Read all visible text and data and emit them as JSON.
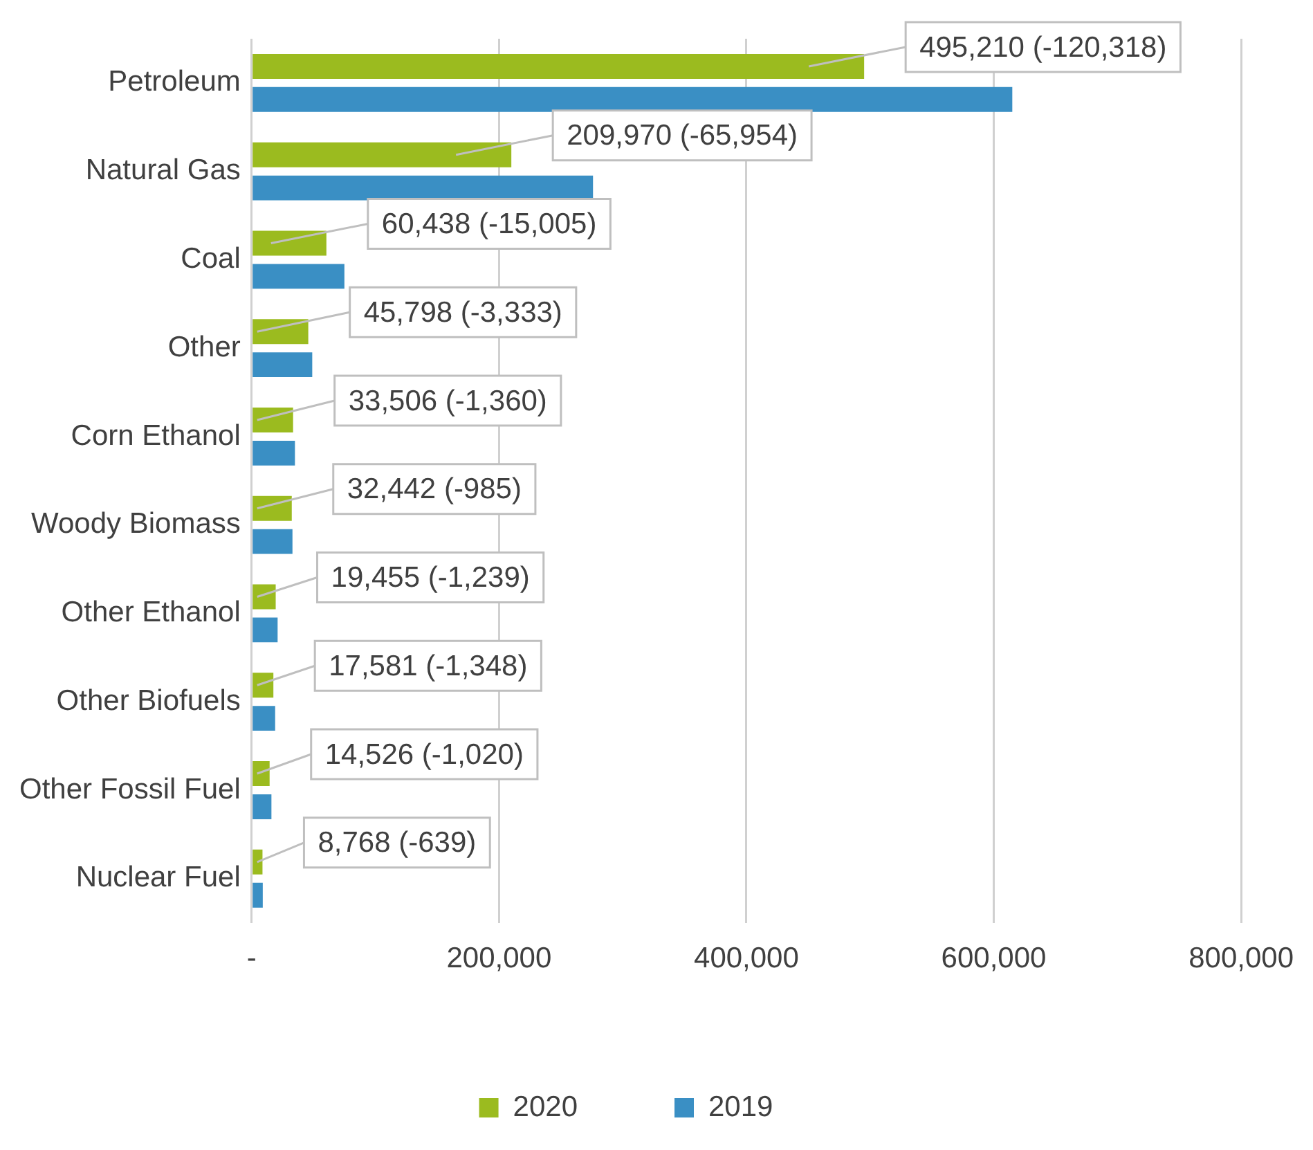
{
  "chart_data": {
    "type": "bar",
    "orientation": "horizontal",
    "categories": [
      "Petroleum",
      "Natural Gas",
      "Coal",
      "Other",
      "Corn Ethanol",
      "Woody Biomass",
      "Other Ethanol",
      "Other Biofuels",
      "Other Fossil Fuel",
      "Nuclear Fuel"
    ],
    "series": [
      {
        "name": "2020",
        "color": "#9bbb1f",
        "values": [
          495210,
          209970,
          60438,
          45798,
          33506,
          32442,
          19455,
          17581,
          14526,
          8768
        ],
        "value_labels": [
          "495,210 (-120,318)",
          "209,970 (-65,954)",
          "60,438 (-15,005)",
          "45,798 (-3,333)",
          "33,506 (-1,360)",
          "32,442 (-985)",
          "19,455 (-1,239)",
          "17,581 (-1,348)",
          "14,526 (-1,020)",
          "8,768 (-639)"
        ]
      },
      {
        "name": "2019",
        "color": "#3a8fc4",
        "values": [
          615000,
          276000,
          75000,
          49000,
          35000,
          33000,
          21000,
          19000,
          16000,
          9000
        ]
      }
    ],
    "xlim": [
      0,
      800000
    ],
    "xticks": [
      {
        "value": 0,
        "label": "-"
      },
      {
        "value": 200000,
        "label": "200,000"
      },
      {
        "value": 400000,
        "label": "400,000"
      },
      {
        "value": 600000,
        "label": "600,000"
      },
      {
        "value": 800000,
        "label": "800,000"
      }
    ],
    "grid": "x",
    "legend": "bottom"
  }
}
